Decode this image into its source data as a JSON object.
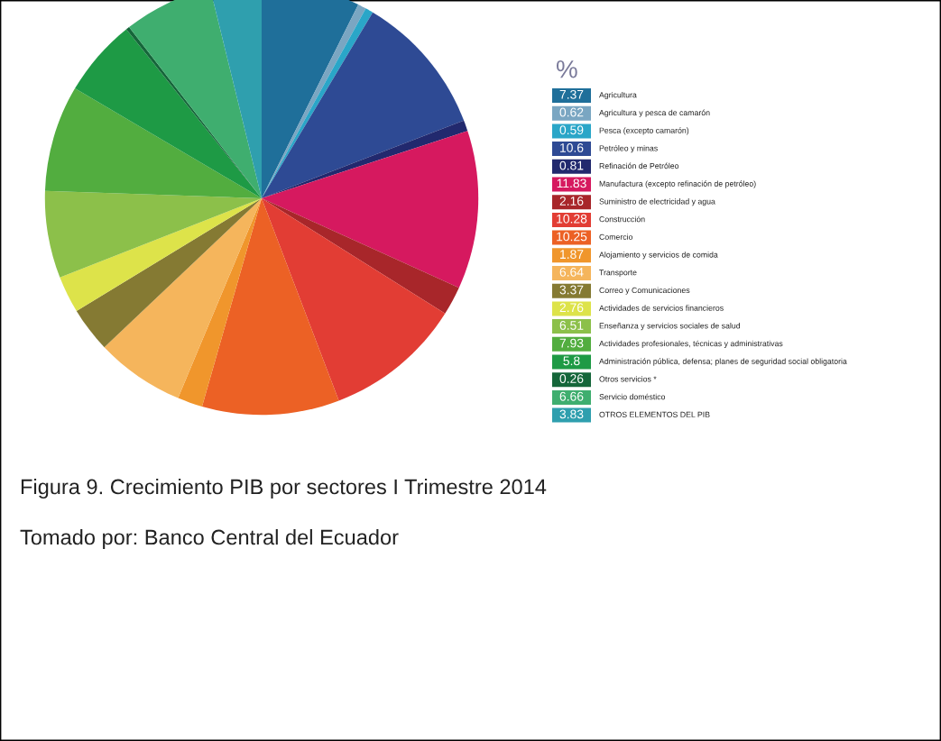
{
  "chart_data": {
    "type": "pie",
    "legend_title": "%",
    "legend": "right",
    "categories": [
      "Agricultura",
      "Agricultura y pesca de camarón",
      "Pesca (excepto camarón)",
      "Petróleo y minas",
      "Refinación de Petróleo",
      "Manufactura (excepto refinación de petróleo)",
      "Suministro de electricidad y agua",
      "Construcción",
      "Comercio",
      "Alojamiento y servicios de comida",
      "Transporte",
      "Correo y Comunicaciones",
      "Actividades de servicios financieros",
      "Enseñanza y servicios sociales de salud",
      "Actividades profesionales, técnicas y administrativas",
      "Administración pública, defensa; planes de seguridad social obligatoria",
      "Otros servicios *",
      "Servicio doméstico",
      "OTROS ELEMENTOS DEL PIB"
    ],
    "values": [
      7.37,
      0.62,
      0.59,
      10.6,
      0.81,
      11.83,
      2.16,
      10.28,
      10.25,
      1.87,
      6.64,
      3.37,
      2.76,
      6.51,
      7.93,
      5.8,
      0.26,
      6.66,
      3.83
    ],
    "value_labels": [
      "7.37",
      "0.62",
      "0.59",
      "10.6",
      "0.81",
      "11.83",
      "2.16",
      "10.28",
      "10.25",
      "1.87",
      "6.64",
      "3.37",
      "2.76",
      "6.51",
      "7.93",
      "5.8",
      "0.26",
      "6.66",
      "3.83"
    ],
    "colors": [
      "#1f6f9a",
      "#7aa6c2",
      "#2aa6c8",
      "#2e4a94",
      "#22296e",
      "#d6195f",
      "#a8262a",
      "#e23d34",
      "#ec6125",
      "#f0962c",
      "#f5b55c",
      "#857a33",
      "#dde34a",
      "#8cc04a",
      "#52ad3f",
      "#1e9a45",
      "#15663a",
      "#3fae6f",
      "#2f9fae"
    ],
    "annotations": [
      "Figura 9. Crecimiento PIB por sectores I Trimestre 2014",
      "Tomado por: Banco Central del Ecuador"
    ]
  }
}
